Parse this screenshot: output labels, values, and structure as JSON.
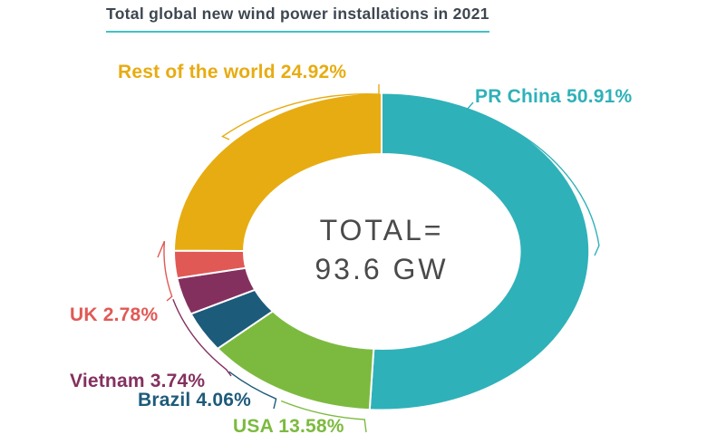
{
  "chart_data": {
    "type": "pie",
    "subtype": "donut",
    "title": "Total global new wind power installations in 2021",
    "unit": "%",
    "direction": "clockwise",
    "start_angle_deg": 0,
    "center_label_line1": "TOTAL=",
    "center_label_line2": "93.6 GW",
    "total_value": "93.6 GW",
    "legend_position": "labels-around-donut",
    "slices": [
      {
        "name": "PR China",
        "value": 50.91,
        "color": "#2fb1b9"
      },
      {
        "name": "USA",
        "value": 13.58,
        "color": "#7cba3f"
      },
      {
        "name": "Brazil",
        "value": 4.06,
        "color": "#1d5b7b"
      },
      {
        "name": "Vietnam",
        "value": 3.74,
        "color": "#84305f"
      },
      {
        "name": "UK",
        "value": 2.78,
        "color": "#e15955"
      },
      {
        "name": "Rest of the world",
        "value": 24.92,
        "color": "#e7ac11"
      }
    ]
  },
  "colors": {
    "accent_underline": "#41c1c6",
    "title_text": "#3d4751",
    "center_text": "#4a4a4a",
    "background": "#ffffff",
    "slice_divider": "#ffffff"
  }
}
